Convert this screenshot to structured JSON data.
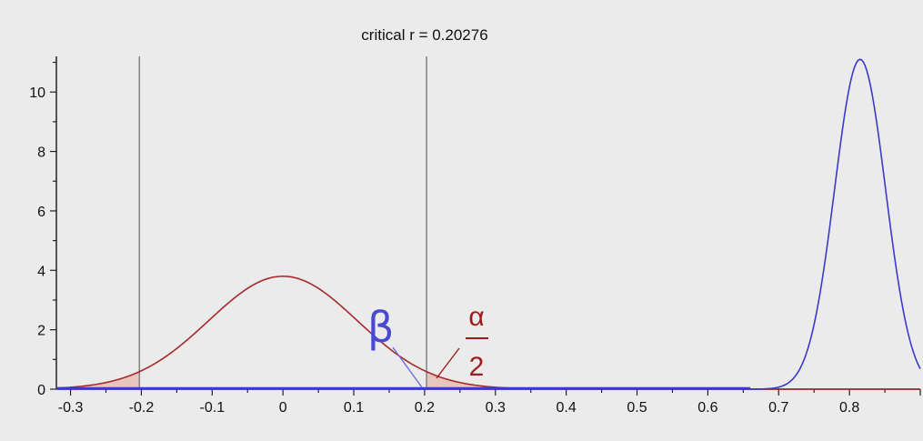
{
  "chart_data": {
    "type": "line",
    "title": "critical r = 0.20276",
    "xlabel": "",
    "ylabel": "",
    "xlim": [
      -0.32,
      0.9
    ],
    "ylim": [
      0,
      11.2
    ],
    "x_ticks": [
      -0.3,
      -0.2,
      -0.1,
      0,
      0.1,
      0.2,
      0.3,
      0.4,
      0.5,
      0.6,
      0.7,
      0.8
    ],
    "x_tick_labels": [
      "-0.3",
      "-0.2",
      "-0.1",
      "0",
      "0.1",
      "0.2",
      "0.3",
      "0.4",
      "0.5",
      "0.6",
      "0.7",
      "0.8"
    ],
    "y_ticks": [
      0,
      2,
      4,
      6,
      8,
      10
    ],
    "y_tick_labels": [
      "0",
      "2",
      "4",
      "6",
      "8",
      "10"
    ],
    "grid": false,
    "critical_lines": [
      -0.20276,
      0.20276
    ],
    "series": [
      {
        "color": "#a52a2a",
        "distribution": "null",
        "x": [
          -0.32,
          -0.3,
          -0.25,
          -0.2,
          -0.15,
          -0.1,
          -0.05,
          0,
          0.05,
          0.1,
          0.15,
          0.2,
          0.25,
          0.3,
          0.35,
          0.4,
          0.5,
          0.6,
          0.7,
          0.8,
          0.9
        ],
        "y": [
          0.0,
          0.08,
          0.25,
          0.6,
          1.2,
          2.05,
          3.05,
          3.8,
          3.05,
          2.05,
          1.2,
          0.6,
          0.25,
          0.08,
          0.02,
          0.0,
          0.0,
          0.0,
          0.0,
          0.0,
          0.0
        ]
      },
      {
        "color": "#3a3acc",
        "distribution": "alternative",
        "x": [
          -0.32,
          0.0,
          0.5,
          0.6,
          0.65,
          0.7,
          0.73,
          0.76,
          0.78,
          0.8,
          0.815,
          0.83,
          0.85,
          0.87,
          0.88,
          0.89,
          0.9
        ],
        "y": [
          0.0,
          0.0,
          0.0,
          0.0,
          0.08,
          0.45,
          1.4,
          4.0,
          7.2,
          10.3,
          11.1,
          10.6,
          7.8,
          3.5,
          1.6,
          0.6,
          0.2
        ]
      }
    ],
    "shaded_regions": [
      {
        "label": "α/2",
        "from": -0.32,
        "to": -0.20276,
        "series": "null"
      },
      {
        "label": "α/2",
        "from": 0.20276,
        "to": 0.3,
        "series": "null"
      }
    ],
    "annotations": {
      "beta": {
        "text": "β",
        "color": "#4a4ad0"
      },
      "alpha_numerator": {
        "text": "α",
        "color": "#a01c1c"
      },
      "alpha_denominator": {
        "text": "2",
        "color": "#a01c1c"
      }
    }
  }
}
